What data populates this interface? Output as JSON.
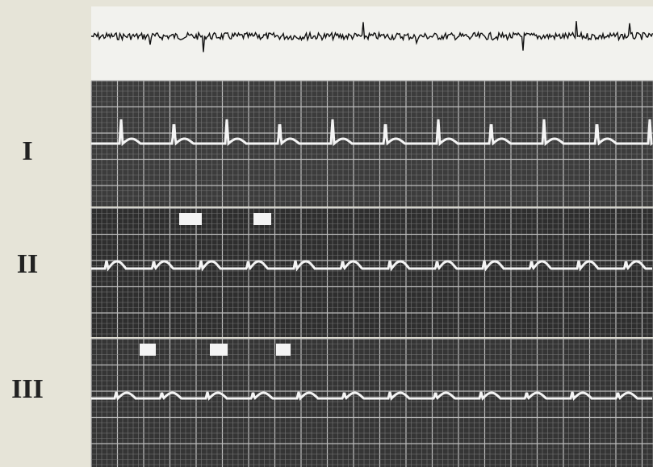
{
  "leads": [
    {
      "label": "I"
    },
    {
      "label": "II"
    },
    {
      "label": "III"
    }
  ]
}
